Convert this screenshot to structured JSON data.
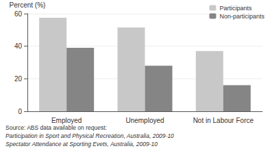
{
  "chart_data": {
    "type": "bar",
    "y_label": "Percent (%)",
    "categories": [
      "Employed",
      "Unemployed",
      "Not in Labour Force"
    ],
    "series": [
      {
        "name": "Participants",
        "color": "#c8c8c8",
        "values": [
          57.5,
          51.5,
          37
        ]
      },
      {
        "name": "Non-participants",
        "color": "#858585",
        "values": [
          39,
          28,
          16
        ]
      }
    ],
    "ylim": [
      0,
      60
    ],
    "yticks": [
      0,
      20,
      40,
      60
    ],
    "grid": true,
    "legend": "top-right",
    "annotations": [
      "Source: ABS data available on request:",
      "Participation in Sport and Physical Recreation, Australia, 2009-10",
      "Spectator Attendance at Sporting Evets, Australia, 2009-10"
    ]
  }
}
